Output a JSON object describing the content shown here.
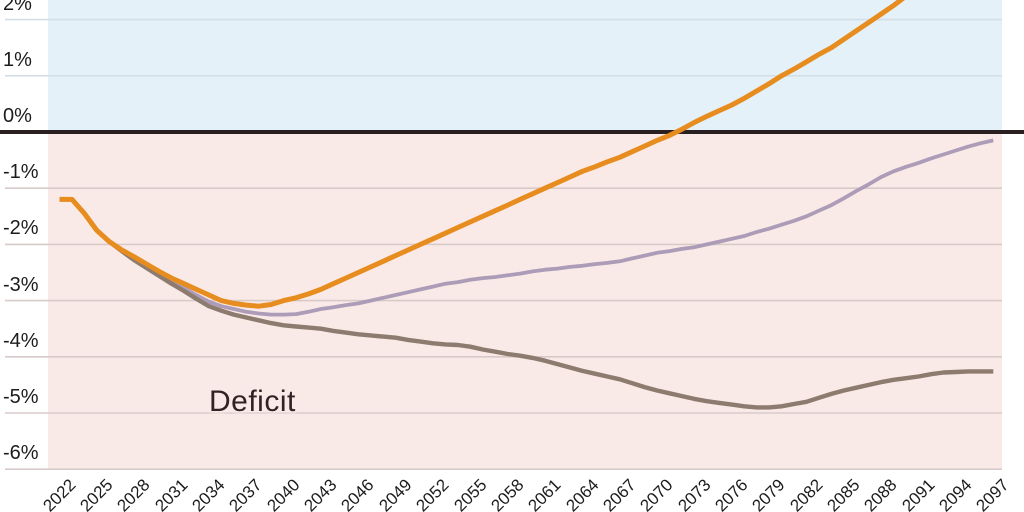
{
  "chart_data": {
    "type": "line",
    "x_axis": {
      "tick_years": [
        2022,
        2025,
        2028,
        2031,
        2034,
        2037,
        2040,
        2043,
        2046,
        2049,
        2052,
        2055,
        2058,
        2061,
        2064,
        2067,
        2070,
        2073,
        2076,
        2079,
        2082,
        2085,
        2088,
        2091,
        2094,
        2097
      ],
      "range": [
        2022,
        2097
      ]
    },
    "y_axis": {
      "tick_labels": [
        "2%",
        "1%",
        "0%",
        "-1%",
        "-2%",
        "-3%",
        "-4%",
        "-5%",
        "-6%"
      ],
      "tick_values": [
        2,
        1,
        0,
        -1,
        -2,
        -3,
        -4,
        -5,
        -6
      ],
      "unit": "percent"
    },
    "annotations": {
      "deficit": "Deficit"
    },
    "colors": {
      "surplus_background": "#E4F1F9",
      "deficit_background": "#FAEAE7",
      "zero_line": "#2A2022",
      "grid_above_zero": "#D3DFE5",
      "grid_below_zero": "#D7CBCA"
    },
    "series": [
      {
        "name": "purple-line",
        "color": "#AC9CB8",
        "points": [
          [
            2022,
            -1.2
          ],
          [
            2023,
            -1.2
          ],
          [
            2024,
            -1.45
          ],
          [
            2025,
            -1.75
          ],
          [
            2026,
            -1.95
          ],
          [
            2027,
            -2.1
          ],
          [
            2028,
            -2.25
          ],
          [
            2029,
            -2.4
          ],
          [
            2030,
            -2.52
          ],
          [
            2031,
            -2.65
          ],
          [
            2032,
            -2.78
          ],
          [
            2033,
            -2.9
          ],
          [
            2034,
            -3.02
          ],
          [
            2035,
            -3.1
          ],
          [
            2036,
            -3.15
          ],
          [
            2037,
            -3.2
          ],
          [
            2038,
            -3.23
          ],
          [
            2039,
            -3.25
          ],
          [
            2040,
            -3.25
          ],
          [
            2041,
            -3.24
          ],
          [
            2042,
            -3.2
          ],
          [
            2043,
            -3.15
          ],
          [
            2044,
            -3.12
          ],
          [
            2045,
            -3.08
          ],
          [
            2046,
            -3.05
          ],
          [
            2047,
            -3.0
          ],
          [
            2048,
            -2.95
          ],
          [
            2049,
            -2.9
          ],
          [
            2050,
            -2.85
          ],
          [
            2051,
            -2.8
          ],
          [
            2052,
            -2.75
          ],
          [
            2053,
            -2.7
          ],
          [
            2054,
            -2.67
          ],
          [
            2055,
            -2.63
          ],
          [
            2056,
            -2.6
          ],
          [
            2057,
            -2.58
          ],
          [
            2058,
            -2.55
          ],
          [
            2059,
            -2.52
          ],
          [
            2060,
            -2.48
          ],
          [
            2061,
            -2.45
          ],
          [
            2062,
            -2.43
          ],
          [
            2063,
            -2.4
          ],
          [
            2064,
            -2.38
          ],
          [
            2065,
            -2.35
          ],
          [
            2066,
            -2.33
          ],
          [
            2067,
            -2.3
          ],
          [
            2068,
            -2.25
          ],
          [
            2069,
            -2.2
          ],
          [
            2070,
            -2.15
          ],
          [
            2071,
            -2.12
          ],
          [
            2072,
            -2.08
          ],
          [
            2073,
            -2.05
          ],
          [
            2074,
            -2.0
          ],
          [
            2075,
            -1.95
          ],
          [
            2076,
            -1.9
          ],
          [
            2077,
            -1.85
          ],
          [
            2078,
            -1.78
          ],
          [
            2079,
            -1.72
          ],
          [
            2080,
            -1.65
          ],
          [
            2081,
            -1.58
          ],
          [
            2082,
            -1.5
          ],
          [
            2083,
            -1.4
          ],
          [
            2084,
            -1.3
          ],
          [
            2085,
            -1.18
          ],
          [
            2086,
            -1.05
          ],
          [
            2087,
            -0.93
          ],
          [
            2088,
            -0.8
          ],
          [
            2089,
            -0.7
          ],
          [
            2090,
            -0.62
          ],
          [
            2091,
            -0.55
          ],
          [
            2092,
            -0.47
          ],
          [
            2093,
            -0.4
          ],
          [
            2094,
            -0.33
          ],
          [
            2095,
            -0.26
          ],
          [
            2096,
            -0.2
          ],
          [
            2097,
            -0.15
          ]
        ]
      },
      {
        "name": "brown-line",
        "color": "#8D7B6F",
        "points": [
          [
            2022,
            -1.2
          ],
          [
            2023,
            -1.2
          ],
          [
            2024,
            -1.45
          ],
          [
            2025,
            -1.75
          ],
          [
            2026,
            -1.95
          ],
          [
            2027,
            -2.12
          ],
          [
            2028,
            -2.28
          ],
          [
            2029,
            -2.42
          ],
          [
            2030,
            -2.56
          ],
          [
            2031,
            -2.7
          ],
          [
            2032,
            -2.83
          ],
          [
            2033,
            -2.97
          ],
          [
            2034,
            -3.1
          ],
          [
            2035,
            -3.18
          ],
          [
            2036,
            -3.25
          ],
          [
            2037,
            -3.3
          ],
          [
            2038,
            -3.35
          ],
          [
            2039,
            -3.4
          ],
          [
            2040,
            -3.44
          ],
          [
            2041,
            -3.46
          ],
          [
            2042,
            -3.48
          ],
          [
            2043,
            -3.5
          ],
          [
            2044,
            -3.54
          ],
          [
            2045,
            -3.57
          ],
          [
            2046,
            -3.6
          ],
          [
            2047,
            -3.62
          ],
          [
            2048,
            -3.64
          ],
          [
            2049,
            -3.66
          ],
          [
            2050,
            -3.7
          ],
          [
            2051,
            -3.73
          ],
          [
            2052,
            -3.76
          ],
          [
            2053,
            -3.78
          ],
          [
            2054,
            -3.79
          ],
          [
            2055,
            -3.82
          ],
          [
            2056,
            -3.87
          ],
          [
            2057,
            -3.91
          ],
          [
            2058,
            -3.95
          ],
          [
            2059,
            -3.98
          ],
          [
            2060,
            -4.02
          ],
          [
            2061,
            -4.07
          ],
          [
            2062,
            -4.13
          ],
          [
            2063,
            -4.19
          ],
          [
            2064,
            -4.25
          ],
          [
            2065,
            -4.3
          ],
          [
            2066,
            -4.35
          ],
          [
            2067,
            -4.4
          ],
          [
            2068,
            -4.47
          ],
          [
            2069,
            -4.54
          ],
          [
            2070,
            -4.6
          ],
          [
            2071,
            -4.65
          ],
          [
            2072,
            -4.7
          ],
          [
            2073,
            -4.75
          ],
          [
            2074,
            -4.79
          ],
          [
            2075,
            -4.82
          ],
          [
            2076,
            -4.85
          ],
          [
            2077,
            -4.88
          ],
          [
            2078,
            -4.9
          ],
          [
            2079,
            -4.9
          ],
          [
            2080,
            -4.88
          ],
          [
            2081,
            -4.84
          ],
          [
            2082,
            -4.8
          ],
          [
            2083,
            -4.73
          ],
          [
            2084,
            -4.66
          ],
          [
            2085,
            -4.6
          ],
          [
            2086,
            -4.55
          ],
          [
            2087,
            -4.5
          ],
          [
            2088,
            -4.45
          ],
          [
            2089,
            -4.41
          ],
          [
            2090,
            -4.38
          ],
          [
            2091,
            -4.35
          ],
          [
            2092,
            -4.31
          ],
          [
            2093,
            -4.28
          ],
          [
            2094,
            -4.27
          ],
          [
            2095,
            -4.26
          ],
          [
            2096,
            -4.26
          ],
          [
            2097,
            -4.26
          ]
        ]
      },
      {
        "name": "orange-line",
        "color": "#E78C1E",
        "points": [
          [
            2022,
            -1.2
          ],
          [
            2023,
            -1.2
          ],
          [
            2024,
            -1.45
          ],
          [
            2025,
            -1.75
          ],
          [
            2026,
            -1.95
          ],
          [
            2027,
            -2.1
          ],
          [
            2028,
            -2.22
          ],
          [
            2029,
            -2.35
          ],
          [
            2030,
            -2.48
          ],
          [
            2031,
            -2.6
          ],
          [
            2032,
            -2.7
          ],
          [
            2033,
            -2.8
          ],
          [
            2034,
            -2.9
          ],
          [
            2035,
            -3.0
          ],
          [
            2036,
            -3.05
          ],
          [
            2037,
            -3.08
          ],
          [
            2038,
            -3.1
          ],
          [
            2039,
            -3.07
          ],
          [
            2040,
            -3.0
          ],
          [
            2041,
            -2.95
          ],
          [
            2042,
            -2.88
          ],
          [
            2043,
            -2.8
          ],
          [
            2044,
            -2.7
          ],
          [
            2045,
            -2.6
          ],
          [
            2046,
            -2.5
          ],
          [
            2047,
            -2.4
          ],
          [
            2048,
            -2.3
          ],
          [
            2049,
            -2.2
          ],
          [
            2050,
            -2.1
          ],
          [
            2051,
            -2.0
          ],
          [
            2052,
            -1.9
          ],
          [
            2053,
            -1.8
          ],
          [
            2054,
            -1.7
          ],
          [
            2055,
            -1.6
          ],
          [
            2056,
            -1.5
          ],
          [
            2057,
            -1.4
          ],
          [
            2058,
            -1.3
          ],
          [
            2059,
            -1.2
          ],
          [
            2060,
            -1.1
          ],
          [
            2061,
            -1.0
          ],
          [
            2062,
            -0.9
          ],
          [
            2063,
            -0.8
          ],
          [
            2064,
            -0.7
          ],
          [
            2065,
            -0.62
          ],
          [
            2066,
            -0.53
          ],
          [
            2067,
            -0.45
          ],
          [
            2068,
            -0.35
          ],
          [
            2069,
            -0.25
          ],
          [
            2070,
            -0.15
          ],
          [
            2071,
            -0.06
          ],
          [
            2072,
            0.05
          ],
          [
            2073,
            0.17
          ],
          [
            2074,
            0.28
          ],
          [
            2075,
            0.38
          ],
          [
            2076,
            0.48
          ],
          [
            2077,
            0.6
          ],
          [
            2078,
            0.73
          ],
          [
            2079,
            0.86
          ],
          [
            2080,
            1.0
          ],
          [
            2081,
            1.12
          ],
          [
            2082,
            1.25
          ],
          [
            2083,
            1.38
          ],
          [
            2084,
            1.5
          ],
          [
            2085,
            1.65
          ],
          [
            2086,
            1.8
          ],
          [
            2087,
            1.95
          ],
          [
            2088,
            2.1
          ],
          [
            2089,
            2.25
          ],
          [
            2090,
            2.42
          ],
          [
            2091,
            2.6
          ]
        ]
      }
    ]
  }
}
